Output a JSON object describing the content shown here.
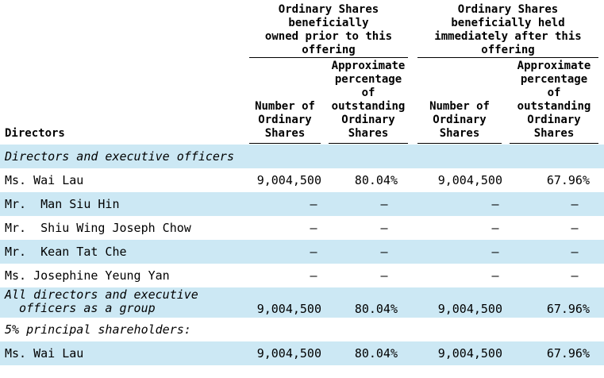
{
  "header": {
    "group_prior": "Ordinary Shares\nbeneficially\nowned prior to this\noffering",
    "group_after": "Ordinary Shares\nbeneficially held\nimmediately after this\noffering",
    "col_number_prior": "Number of\nOrdinary\nShares",
    "col_pct_prior": "Approximate\npercentage\nof\noutstanding\nOrdinary\nShares",
    "col_number_after": "Number of\nOrdinary\nShares",
    "col_pct_after": "Approximate\npercentage\nof\noutstanding\nOrdinary\nShares",
    "directors": "Directors"
  },
  "rows": [
    {
      "label": "Directors and executive officers",
      "italic": true,
      "shaded": true,
      "values": [
        "",
        "",
        "",
        ""
      ]
    },
    {
      "label": "Ms. Wai Lau",
      "italic": false,
      "shaded": false,
      "values": [
        "9,004,500",
        "80.04%",
        "9,004,500",
        "67.96%"
      ]
    },
    {
      "label": "Mr.  Man Siu Hin",
      "italic": false,
      "shaded": true,
      "values": [
        "—",
        "—",
        "—",
        "—"
      ]
    },
    {
      "label": "Mr.  Shiu Wing Joseph Chow",
      "italic": false,
      "shaded": false,
      "values": [
        "—",
        "—",
        "—",
        "—"
      ]
    },
    {
      "label": "Mr.  Kean Tat Che",
      "italic": false,
      "shaded": true,
      "values": [
        "—",
        "—",
        "—",
        "—"
      ]
    },
    {
      "label": "Ms. Josephine Yeung Yan",
      "italic": false,
      "shaded": false,
      "values": [
        "—",
        "—",
        "—",
        "—"
      ]
    },
    {
      "label": "All directors and executive\n  officers as a group",
      "italic": true,
      "shaded": true,
      "values": [
        "9,004,500",
        "80.04%",
        "9,004,500",
        "67.96%"
      ]
    },
    {
      "label": "5% principal shareholders:",
      "italic": true,
      "shaded": false,
      "values": [
        "",
        "",
        "",
        ""
      ]
    },
    {
      "label": "Ms. Wai Lau",
      "italic": false,
      "shaded": true,
      "values": [
        "9,004,500",
        "80.04%",
        "9,004,500",
        "67.96%"
      ]
    }
  ]
}
